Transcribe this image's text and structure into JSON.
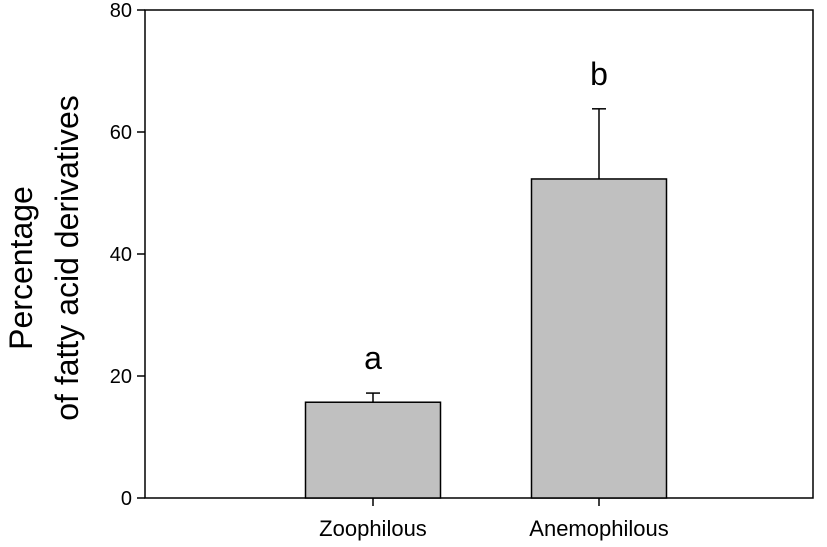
{
  "chart_data": {
    "type": "bar",
    "categories": [
      "Zoophilous",
      "Anemophilous"
    ],
    "values": [
      15.7,
      52.3
    ],
    "errors": [
      1.5,
      11.5
    ],
    "significance_labels": [
      "a",
      "b"
    ],
    "ylabel_lines": [
      "Percentage",
      "of fatty acid derivatives"
    ],
    "xlabel": "",
    "ylim": [
      0,
      80
    ],
    "yticks": [
      0,
      20,
      40,
      60,
      80
    ],
    "grid": false,
    "bar_color": "#c0c0c0",
    "edge_color": "#000000"
  }
}
